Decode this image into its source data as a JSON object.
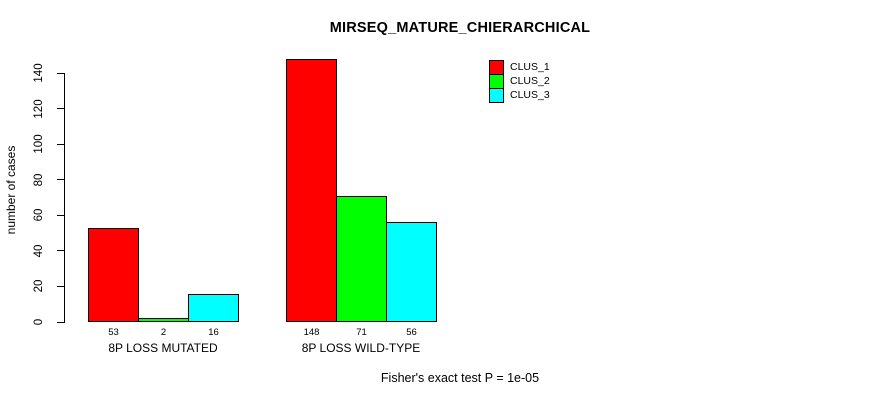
{
  "chart_data": {
    "type": "bar",
    "title": "MIRSEQ_MATURE_CHIERARCHICAL",
    "ylabel": "number of cases",
    "xlabel": "",
    "ylim": [
      0,
      140
    ],
    "yticks": [
      0,
      20,
      40,
      60,
      80,
      100,
      120,
      140
    ],
    "grid": false,
    "legend_position": "top-right",
    "categories": [
      "8P LOSS MUTATED",
      "8P LOSS WILD-TYPE"
    ],
    "series": [
      {
        "name": "CLUS_1",
        "color": "#ff0000",
        "values": [
          53,
          148
        ]
      },
      {
        "name": "CLUS_2",
        "color": "#00ff00",
        "values": [
          2,
          71
        ]
      },
      {
        "name": "CLUS_3",
        "color": "#00ffff",
        "values": [
          16,
          56
        ]
      }
    ],
    "bar_value_labels": [
      [
        "53",
        "2",
        "16"
      ],
      [
        "148",
        "71",
        "56"
      ]
    ],
    "annotation": "Fisher's exact test P = 1e-05"
  },
  "colors": {
    "background": "#ffffff",
    "axis": "#000000",
    "bar_border": "#000000",
    "text": "#000000"
  }
}
